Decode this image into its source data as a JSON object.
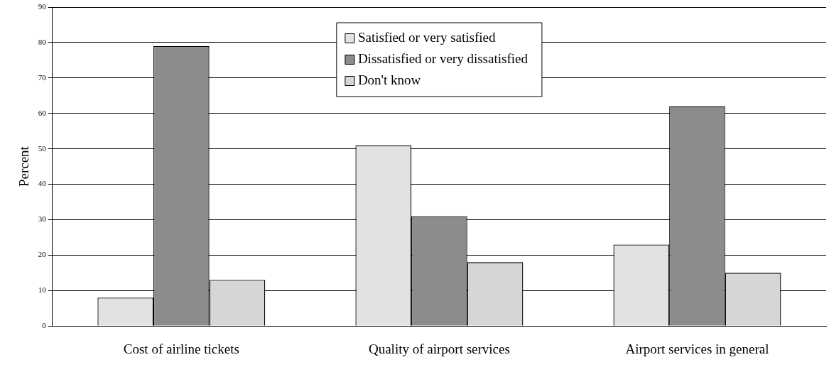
{
  "chart_data": {
    "type": "bar",
    "ylabel": "Percent",
    "categories": [
      "Cost of airline tickets",
      "Quality of airport services",
      "Airport services in general"
    ],
    "series": [
      {
        "name": "Satisfied or very satisfied",
        "color": "#e2e2e2",
        "values": [
          8,
          51,
          23
        ]
      },
      {
        "name": "Dissatisfied or very dissatisfied",
        "color": "#8c8c8c",
        "values": [
          79,
          31,
          62
        ]
      },
      {
        "name": "Don't know",
        "color": "#d6d6d6",
        "values": [
          13,
          18,
          15
        ]
      }
    ],
    "ylim": [
      0,
      90
    ],
    "yticks": [
      0,
      10,
      20,
      30,
      40,
      50,
      60,
      70,
      80,
      90
    ],
    "grid": "y",
    "legend": "top"
  }
}
